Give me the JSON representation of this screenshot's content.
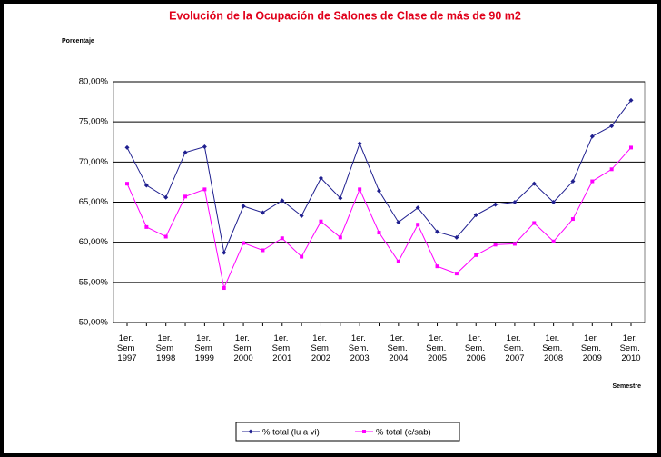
{
  "chart_data": {
    "type": "line",
    "title": "Evolución de la Ocupación de Salones de Clase de más de 90 m2",
    "y_label": "Porcentaje",
    "x_label": "Semestre",
    "categories": [
      "1er. Sem 1997",
      null,
      "1er. Sem 1998",
      null,
      "1er. Sem 1999",
      null,
      "1er. Sem 2000",
      null,
      "1er. Sem 2001",
      null,
      "1er. Sem 2002",
      null,
      "1er. Sem. 2003",
      null,
      "1er. Sem. 2004",
      null,
      "1er. Sem. 2005",
      null,
      "1er. Sem. 2006",
      null,
      "1er. Sem. 2007",
      null,
      "1er. Sem. 2008",
      null,
      "1er. Sem. 2009",
      null,
      "1er. Sem. 2010"
    ],
    "series": [
      {
        "name": "% total (lu a vi)",
        "color": "#1f1f8f",
        "values": [
          71.8,
          67.1,
          65.6,
          71.2,
          71.9,
          58.7,
          64.5,
          63.7,
          65.2,
          63.3,
          68.0,
          65.5,
          72.3,
          66.4,
          62.5,
          64.3,
          61.3,
          60.6,
          63.4,
          64.7,
          65.0,
          67.3,
          65.0,
          67.6,
          73.2,
          74.5,
          77.7
        ]
      },
      {
        "name": "% total (c/sab)",
        "color": "#ff00ff",
        "values": [
          67.3,
          61.9,
          60.7,
          65.7,
          66.6,
          54.3,
          59.9,
          59.0,
          60.5,
          58.2,
          62.6,
          60.6,
          66.6,
          61.2,
          57.6,
          62.2,
          57.0,
          56.1,
          58.4,
          59.7,
          59.8,
          62.4,
          60.1,
          62.9,
          67.6,
          69.1,
          71.8
        ]
      }
    ],
    "ylim": [
      50,
      80
    ],
    "yticks": [
      {
        "value": 50,
        "label": "50,00%"
      },
      {
        "value": 55,
        "label": "55,00%"
      },
      {
        "value": 60,
        "label": "60,00%"
      },
      {
        "value": 65,
        "label": "65,00%"
      },
      {
        "value": 70,
        "label": "70,00%"
      },
      {
        "value": 75,
        "label": "75,00%"
      },
      {
        "value": 80,
        "label": "80,00%"
      }
    ],
    "grid": true,
    "legend": "bottom"
  }
}
